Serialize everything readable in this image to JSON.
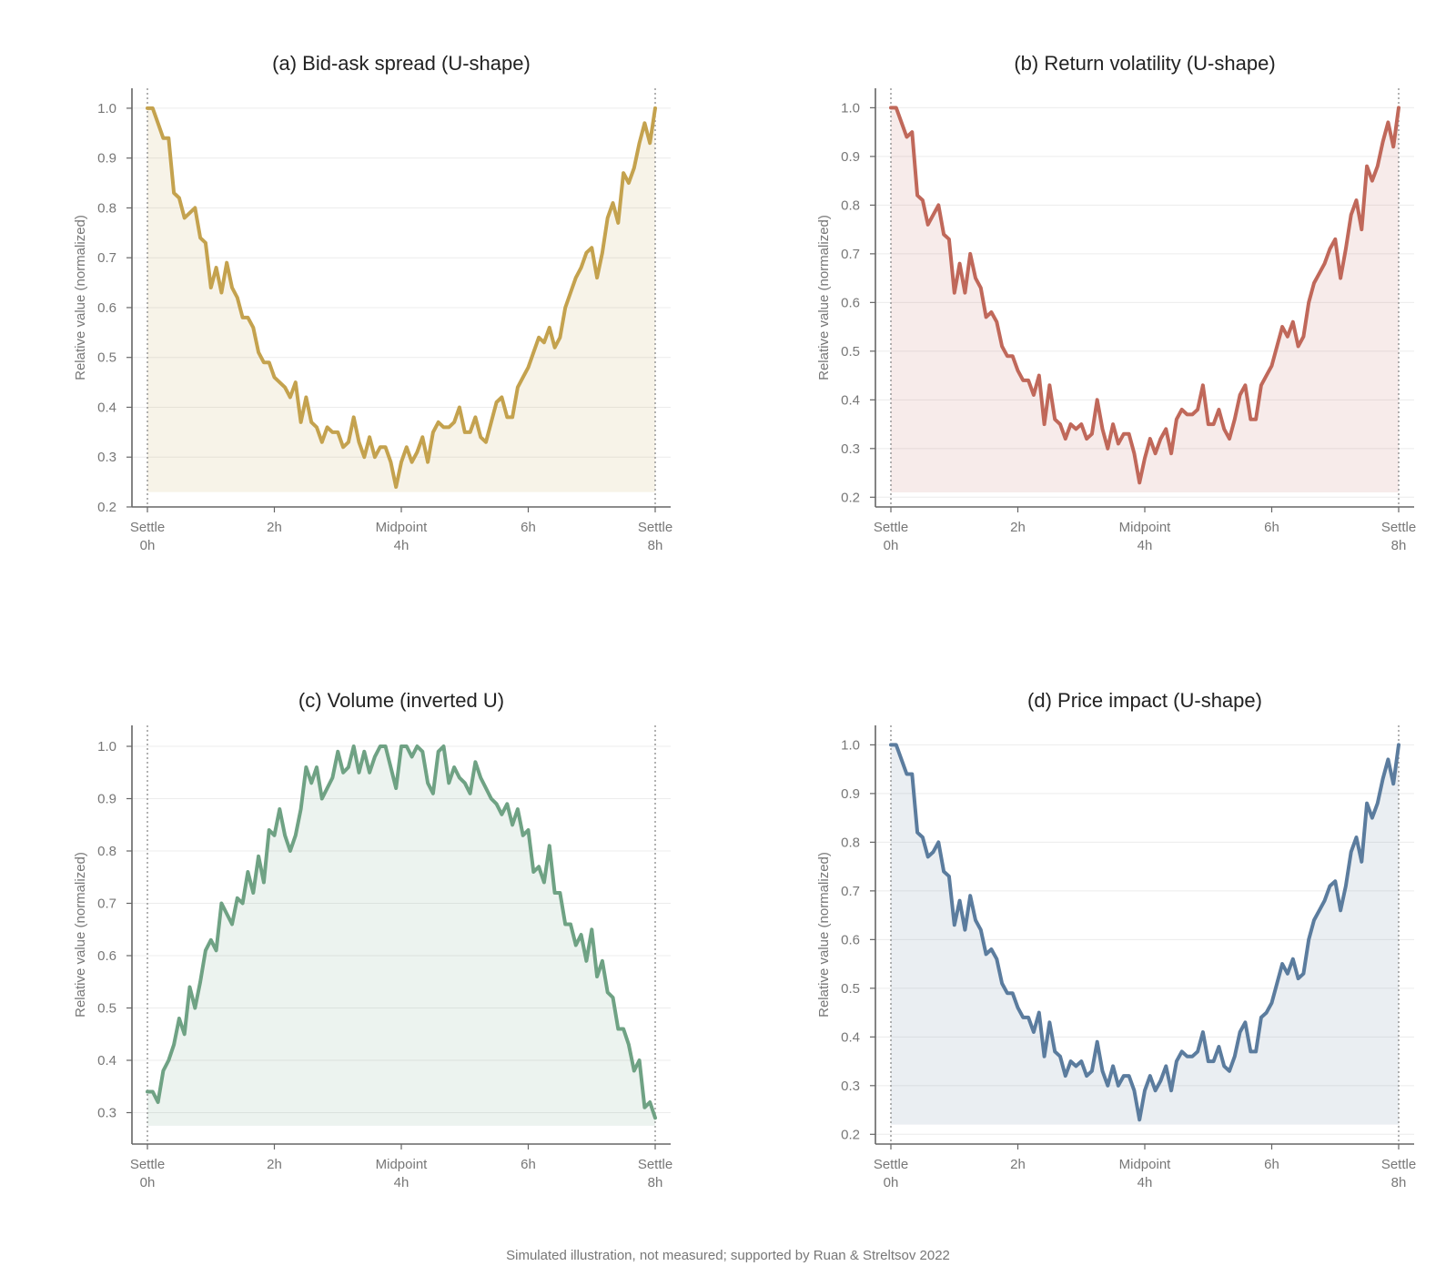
{
  "caption": "Simulated illustration, not measured; supported by Ruan & Streltsov 2022",
  "colors": {
    "bid_ask": "#c4a24e",
    "volatility": "#c0685a",
    "volume": "#6fa284",
    "price_impact": "#5b7c9e",
    "grid": "#ececec",
    "axis": "#666666",
    "text": "#777777"
  },
  "chart_data": [
    {
      "id": "a",
      "type": "area",
      "title": "(a) Bid-ask spread (U-shape)",
      "ylabel": "Relative value (normalized)",
      "xlabel": "",
      "xlim": [
        0,
        8
      ],
      "ylim": [
        0.2,
        1.04
      ],
      "yticks": [
        0.2,
        0.3,
        0.4,
        0.5,
        0.6,
        0.7,
        0.8,
        0.9,
        1.0
      ],
      "xticks": [
        {
          "value": 0,
          "lines": [
            "Settle",
            "0h"
          ]
        },
        {
          "value": 2,
          "lines": [
            "2h"
          ]
        },
        {
          "value": 4,
          "lines": [
            "Midpoint",
            "4h"
          ]
        },
        {
          "value": 6,
          "lines": [
            "6h"
          ]
        },
        {
          "value": 8,
          "lines": [
            "Settle",
            "8h"
          ]
        }
      ],
      "vlines": [
        0,
        8
      ],
      "fill_base": 0.23,
      "grid": "y",
      "color": "#c4a24e",
      "series": [
        {
          "values": [
            1.0,
            1.0,
            0.97,
            0.94,
            0.94,
            0.83,
            0.82,
            0.78,
            0.79,
            0.8,
            0.74,
            0.73,
            0.64,
            0.68,
            0.63,
            0.69,
            0.64,
            0.62,
            0.58,
            0.58,
            0.56,
            0.51,
            0.49,
            0.49,
            0.46,
            0.45,
            0.44,
            0.42,
            0.45,
            0.37,
            0.42,
            0.37,
            0.36,
            0.33,
            0.36,
            0.35,
            0.35,
            0.32,
            0.33,
            0.38,
            0.33,
            0.3,
            0.34,
            0.3,
            0.32,
            0.32,
            0.29,
            0.24,
            0.29,
            0.32,
            0.29,
            0.31,
            0.34,
            0.29,
            0.35,
            0.37,
            0.36,
            0.36,
            0.37,
            0.4,
            0.35,
            0.35,
            0.38,
            0.34,
            0.33,
            0.37,
            0.41,
            0.42,
            0.38,
            0.38,
            0.44,
            0.46,
            0.48,
            0.51,
            0.54,
            0.53,
            0.56,
            0.52,
            0.54,
            0.6,
            0.63,
            0.66,
            0.68,
            0.71,
            0.72,
            0.66,
            0.71,
            0.78,
            0.81,
            0.77,
            0.87,
            0.85,
            0.88,
            0.93,
            0.97,
            0.93,
            1.0
          ]
        }
      ]
    },
    {
      "id": "b",
      "type": "area",
      "title": "(b) Return volatility (U-shape)",
      "ylabel": "Relative value (normalized)",
      "xlabel": "",
      "xlim": [
        0,
        8
      ],
      "ylim": [
        0.18,
        1.04
      ],
      "yticks": [
        0.2,
        0.3,
        0.4,
        0.5,
        0.6,
        0.7,
        0.8,
        0.9,
        1.0
      ],
      "xticks": [
        {
          "value": 0,
          "lines": [
            "Settle",
            "0h"
          ]
        },
        {
          "value": 2,
          "lines": [
            "2h"
          ]
        },
        {
          "value": 4,
          "lines": [
            "Midpoint",
            "4h"
          ]
        },
        {
          "value": 6,
          "lines": [
            "6h"
          ]
        },
        {
          "value": 8,
          "lines": [
            "Settle",
            "8h"
          ]
        }
      ],
      "vlines": [
        0,
        8
      ],
      "fill_base": 0.21,
      "grid": "y",
      "color": "#c0685a",
      "series": [
        {
          "values": [
            1.0,
            1.0,
            0.97,
            0.94,
            0.95,
            0.82,
            0.81,
            0.76,
            0.78,
            0.8,
            0.74,
            0.73,
            0.62,
            0.68,
            0.62,
            0.7,
            0.65,
            0.63,
            0.57,
            0.58,
            0.56,
            0.51,
            0.49,
            0.49,
            0.46,
            0.44,
            0.44,
            0.41,
            0.45,
            0.35,
            0.43,
            0.36,
            0.35,
            0.32,
            0.35,
            0.34,
            0.35,
            0.32,
            0.33,
            0.4,
            0.34,
            0.3,
            0.35,
            0.31,
            0.33,
            0.33,
            0.29,
            0.23,
            0.28,
            0.32,
            0.29,
            0.32,
            0.34,
            0.29,
            0.36,
            0.38,
            0.37,
            0.37,
            0.38,
            0.43,
            0.35,
            0.35,
            0.38,
            0.34,
            0.32,
            0.36,
            0.41,
            0.43,
            0.36,
            0.36,
            0.43,
            0.45,
            0.47,
            0.51,
            0.55,
            0.53,
            0.56,
            0.51,
            0.53,
            0.6,
            0.64,
            0.66,
            0.68,
            0.71,
            0.73,
            0.65,
            0.71,
            0.78,
            0.81,
            0.75,
            0.88,
            0.85,
            0.88,
            0.93,
            0.97,
            0.92,
            1.0
          ]
        }
      ]
    },
    {
      "id": "c",
      "type": "area",
      "title": "(c) Volume (inverted U)",
      "ylabel": "Relative value (normalized)",
      "xlabel": "",
      "xlim": [
        0,
        8
      ],
      "ylim": [
        0.24,
        1.04
      ],
      "yticks": [
        0.3,
        0.4,
        0.5,
        0.6,
        0.7,
        0.8,
        0.9,
        1.0
      ],
      "xticks": [
        {
          "value": 0,
          "lines": [
            "Settle",
            "0h"
          ]
        },
        {
          "value": 2,
          "lines": [
            "2h"
          ]
        },
        {
          "value": 4,
          "lines": [
            "Midpoint",
            "4h"
          ]
        },
        {
          "value": 6,
          "lines": [
            "6h"
          ]
        },
        {
          "value": 8,
          "lines": [
            "Settle",
            "8h"
          ]
        }
      ],
      "vlines": [
        0,
        8
      ],
      "fill_base": 0.275,
      "grid": "y",
      "color": "#6fa284",
      "series": [
        {
          "values": [
            0.34,
            0.34,
            0.32,
            0.38,
            0.4,
            0.43,
            0.48,
            0.45,
            0.54,
            0.5,
            0.55,
            0.61,
            0.63,
            0.61,
            0.7,
            0.68,
            0.66,
            0.71,
            0.7,
            0.76,
            0.72,
            0.79,
            0.74,
            0.84,
            0.83,
            0.88,
            0.83,
            0.8,
            0.83,
            0.88,
            0.96,
            0.93,
            0.96,
            0.9,
            0.92,
            0.94,
            0.99,
            0.95,
            0.96,
            1.0,
            0.95,
            0.99,
            0.95,
            0.98,
            1.0,
            1.0,
            0.96,
            0.92,
            1.0,
            1.0,
            0.98,
            1.0,
            0.99,
            0.93,
            0.91,
            0.99,
            1.0,
            0.93,
            0.96,
            0.94,
            0.93,
            0.91,
            0.97,
            0.94,
            0.92,
            0.9,
            0.89,
            0.87,
            0.89,
            0.85,
            0.88,
            0.83,
            0.84,
            0.76,
            0.77,
            0.74,
            0.81,
            0.72,
            0.72,
            0.66,
            0.66,
            0.62,
            0.64,
            0.59,
            0.65,
            0.56,
            0.59,
            0.53,
            0.52,
            0.46,
            0.46,
            0.43,
            0.38,
            0.4,
            0.31,
            0.32,
            0.29
          ]
        }
      ]
    },
    {
      "id": "d",
      "type": "area",
      "title": "(d) Price impact (U-shape)",
      "ylabel": "Relative value (normalized)",
      "xlabel": "",
      "xlim": [
        0,
        8
      ],
      "ylim": [
        0.18,
        1.04
      ],
      "yticks": [
        0.2,
        0.3,
        0.4,
        0.5,
        0.6,
        0.7,
        0.8,
        0.9,
        1.0
      ],
      "xticks": [
        {
          "value": 0,
          "lines": [
            "Settle",
            "0h"
          ]
        },
        {
          "value": 2,
          "lines": [
            "2h"
          ]
        },
        {
          "value": 4,
          "lines": [
            "Midpoint",
            "4h"
          ]
        },
        {
          "value": 6,
          "lines": [
            "6h"
          ]
        },
        {
          "value": 8,
          "lines": [
            "Settle",
            "8h"
          ]
        }
      ],
      "vlines": [
        0,
        8
      ],
      "fill_base": 0.22,
      "grid": "y",
      "color": "#5b7c9e",
      "series": [
        {
          "values": [
            1.0,
            1.0,
            0.97,
            0.94,
            0.94,
            0.82,
            0.81,
            0.77,
            0.78,
            0.8,
            0.74,
            0.73,
            0.63,
            0.68,
            0.62,
            0.69,
            0.64,
            0.62,
            0.57,
            0.58,
            0.56,
            0.51,
            0.49,
            0.49,
            0.46,
            0.44,
            0.44,
            0.41,
            0.45,
            0.36,
            0.43,
            0.37,
            0.36,
            0.32,
            0.35,
            0.34,
            0.35,
            0.32,
            0.33,
            0.39,
            0.33,
            0.3,
            0.34,
            0.3,
            0.32,
            0.32,
            0.29,
            0.23,
            0.29,
            0.32,
            0.29,
            0.31,
            0.34,
            0.29,
            0.35,
            0.37,
            0.36,
            0.36,
            0.37,
            0.41,
            0.35,
            0.35,
            0.38,
            0.34,
            0.33,
            0.36,
            0.41,
            0.43,
            0.37,
            0.37,
            0.44,
            0.45,
            0.47,
            0.51,
            0.55,
            0.53,
            0.56,
            0.52,
            0.53,
            0.6,
            0.64,
            0.66,
            0.68,
            0.71,
            0.72,
            0.66,
            0.71,
            0.78,
            0.81,
            0.76,
            0.88,
            0.85,
            0.88,
            0.93,
            0.97,
            0.92,
            1.0
          ]
        }
      ]
    }
  ]
}
